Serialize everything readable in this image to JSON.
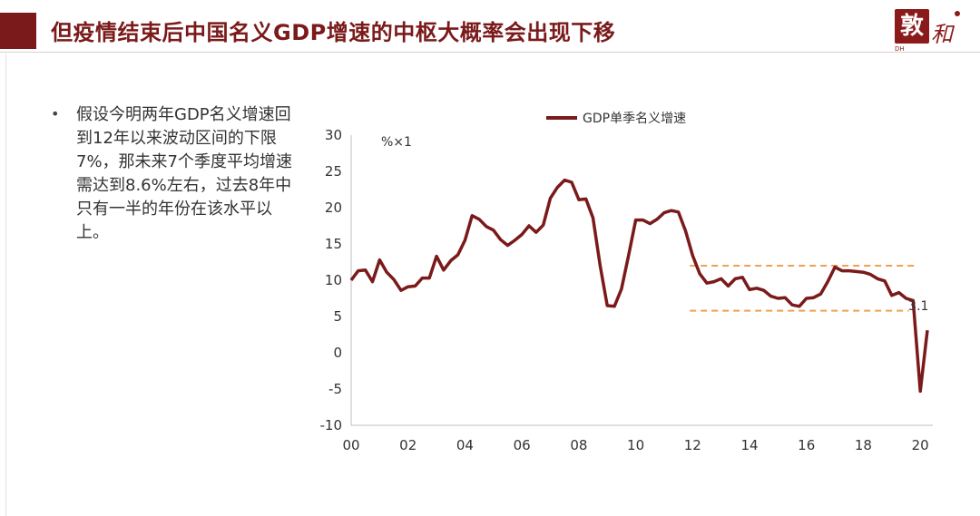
{
  "header": {
    "title": "但疫情结束后中国名义GDP增速的中枢大概率会出现下移"
  },
  "logo": {
    "seal_char": "敦",
    "script_char": "和",
    "caption": "DH",
    "colors": {
      "brand": "#8b1a1a"
    }
  },
  "bullet": {
    "text": "假设今明两年GDP名义增速回到12年以来波动区间的下限7%，那未来7个季度平均增速需达到8.6%左右，过去8年中只有一半的年份在该水平以上。"
  },
  "chart_data": {
    "type": "line",
    "unit_label": "%×1",
    "xlim": [
      2000,
      2020.25
    ],
    "ylim": [
      -10,
      30
    ],
    "y_ticks": [
      -10,
      -5,
      0,
      5,
      10,
      15,
      20,
      25,
      30
    ],
    "x_ticks": [
      {
        "value": 2000,
        "label": "00"
      },
      {
        "value": 2002,
        "label": "02"
      },
      {
        "value": 2004,
        "label": "04"
      },
      {
        "value": 2006,
        "label": "06"
      },
      {
        "value": 2008,
        "label": "08"
      },
      {
        "value": 2010,
        "label": "10"
      },
      {
        "value": 2012,
        "label": "12"
      },
      {
        "value": 2014,
        "label": "14"
      },
      {
        "value": 2016,
        "label": "16"
      },
      {
        "value": 2018,
        "label": "18"
      },
      {
        "value": 2020,
        "label": "20"
      }
    ],
    "series": [
      {
        "name": "GDP单季名义增速",
        "color": "#7a1a1a",
        "x": [
          2000.0,
          2000.25,
          2000.5,
          2000.75,
          2001.0,
          2001.25,
          2001.5,
          2001.75,
          2002.0,
          2002.25,
          2002.5,
          2002.75,
          2003.0,
          2003.25,
          2003.5,
          2003.75,
          2004.0,
          2004.25,
          2004.5,
          2004.75,
          2005.0,
          2005.25,
          2005.5,
          2005.75,
          2006.0,
          2006.25,
          2006.5,
          2006.75,
          2007.0,
          2007.25,
          2007.5,
          2007.75,
          2008.0,
          2008.25,
          2008.5,
          2008.75,
          2009.0,
          2009.25,
          2009.5,
          2009.75,
          2010.0,
          2010.25,
          2010.5,
          2010.75,
          2011.0,
          2011.25,
          2011.5,
          2011.75,
          2012.0,
          2012.25,
          2012.5,
          2012.75,
          2013.0,
          2013.25,
          2013.5,
          2013.75,
          2014.0,
          2014.25,
          2014.5,
          2014.75,
          2015.0,
          2015.25,
          2015.5,
          2015.75,
          2016.0,
          2016.25,
          2016.5,
          2016.75,
          2017.0,
          2017.25,
          2017.5,
          2017.75,
          2018.0,
          2018.25,
          2018.5,
          2018.75,
          2019.0,
          2019.25,
          2019.5,
          2019.75,
          2020.0,
          2020.25
        ],
        "values": [
          10.0,
          11.3,
          11.4,
          9.8,
          12.8,
          11.1,
          10.1,
          8.6,
          9.1,
          9.2,
          10.3,
          10.3,
          13.3,
          11.4,
          12.7,
          13.5,
          15.5,
          18.9,
          18.4,
          17.4,
          16.9,
          15.6,
          14.8,
          15.5,
          16.3,
          17.5,
          16.6,
          17.6,
          21.3,
          22.8,
          23.8,
          23.5,
          21.1,
          21.2,
          18.6,
          12.0,
          6.5,
          6.4,
          8.8,
          13.4,
          18.3,
          18.3,
          17.8,
          18.4,
          19.3,
          19.6,
          19.4,
          16.8,
          13.4,
          10.9,
          9.6,
          9.8,
          10.2,
          9.2,
          10.2,
          10.4,
          8.7,
          8.9,
          8.6,
          7.8,
          7.5,
          7.6,
          6.6,
          6.4,
          7.5,
          7.6,
          8.1,
          9.8,
          11.8,
          11.3,
          11.3,
          11.2,
          11.1,
          10.8,
          10.2,
          9.9,
          7.9,
          8.3,
          7.5,
          7.2,
          -5.3,
          3.1
        ]
      }
    ],
    "reference_lines": [
      {
        "y": 12.0,
        "x_start": 2011.9,
        "x_end": 2019.8,
        "style": "dashed",
        "color": "#f0a050"
      },
      {
        "y": 5.8,
        "x_start": 2011.9,
        "x_end": 2019.6,
        "style": "dashed",
        "color": "#f0a050"
      }
    ],
    "annotations": [
      {
        "text": "3.1",
        "x": 2020.0,
        "y": 3.1
      }
    ],
    "legend": {
      "position": "top-center"
    },
    "grid": false
  }
}
